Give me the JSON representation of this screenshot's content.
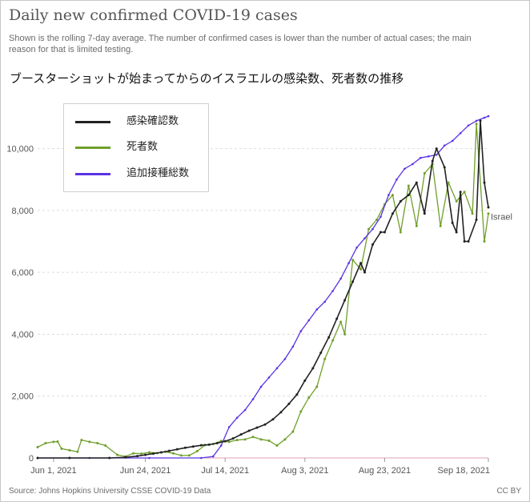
{
  "title": "Daily new confirmed COVID-19 cases",
  "subtitle": "Shown is the rolling 7-day average. The number of confirmed cases is lower than the number of actual cases; the main reason for that is limited testing.",
  "annotation": "ブースターショットが始まってからのイスラエルの感染数、死者数の推移",
  "source": "Source: Johns Hopkins University CSSE COVID-19 Data",
  "license": "CC BY",
  "colors": {
    "cases": "#222222",
    "deaths": "#6f9f2a",
    "vaccinations": "#5b33e6",
    "grid": "#dddddd",
    "baseline": "#e0a0b0"
  },
  "chart_data": {
    "type": "line",
    "x_ticks": [
      "Jun 1, 2021",
      "Jun 24, 2021",
      "Jul 14, 2021",
      "Aug 3, 2021",
      "Aug 23, 2021",
      "Sep 18, 2021"
    ],
    "y_ticks": [
      "0",
      "2,000",
      "4,000",
      "6,000",
      "8,000",
      "10,000"
    ],
    "ylim": [
      0,
      11000
    ],
    "xlim": [
      "2021-05-28",
      "2021-09-18"
    ],
    "line_label": "Israel",
    "legend": {
      "position": "top-left"
    },
    "series": [
      {
        "name": "感染確認数",
        "color": "#222222",
        "points": [
          [
            "2021-05-28",
            0
          ],
          [
            "2021-06-05",
            0
          ],
          [
            "2021-06-15",
            0
          ],
          [
            "2021-06-19",
            20
          ],
          [
            "2021-06-22",
            60
          ],
          [
            "2021-06-24",
            100
          ],
          [
            "2021-06-26",
            140
          ],
          [
            "2021-06-28",
            180
          ],
          [
            "2021-06-30",
            230
          ],
          [
            "2021-07-02",
            280
          ],
          [
            "2021-07-04",
            330
          ],
          [
            "2021-07-06",
            370
          ],
          [
            "2021-07-08",
            410
          ],
          [
            "2021-07-10",
            430
          ],
          [
            "2021-07-12",
            480
          ],
          [
            "2021-07-14",
            540
          ],
          [
            "2021-07-16",
            630
          ],
          [
            "2021-07-18",
            760
          ],
          [
            "2021-07-20",
            880
          ],
          [
            "2021-07-22",
            980
          ],
          [
            "2021-07-24",
            1080
          ],
          [
            "2021-07-26",
            1250
          ],
          [
            "2021-07-28",
            1480
          ],
          [
            "2021-07-30",
            1750
          ],
          [
            "2021-08-01",
            2050
          ],
          [
            "2021-08-03",
            2500
          ],
          [
            "2021-08-05",
            2900
          ],
          [
            "2021-08-07",
            3400
          ],
          [
            "2021-08-09",
            3900
          ],
          [
            "2021-08-11",
            4500
          ],
          [
            "2021-08-13",
            5100
          ],
          [
            "2021-08-15",
            5700
          ],
          [
            "2021-08-17",
            6300
          ],
          [
            "2021-08-18",
            6000
          ],
          [
            "2021-08-20",
            6900
          ],
          [
            "2021-08-22",
            7300
          ],
          [
            "2021-08-23",
            7300
          ],
          [
            "2021-08-25",
            7900
          ],
          [
            "2021-08-27",
            8300
          ],
          [
            "2021-08-29",
            8500
          ],
          [
            "2021-08-31",
            8900
          ],
          [
            "2021-09-02",
            7900
          ],
          [
            "2021-09-04",
            9600
          ],
          [
            "2021-09-05",
            10000
          ],
          [
            "2021-09-07",
            9400
          ],
          [
            "2021-09-09",
            7600
          ],
          [
            "2021-09-10",
            7300
          ],
          [
            "2021-09-11",
            8600
          ],
          [
            "2021-09-12",
            7000
          ],
          [
            "2021-09-13",
            7000
          ],
          [
            "2021-09-15",
            7700
          ],
          [
            "2021-09-16",
            10900
          ],
          [
            "2021-09-17",
            8900
          ],
          [
            "2021-09-18",
            8100
          ]
        ]
      },
      {
        "name": "死者数",
        "color": "#6f9f2a",
        "points": [
          [
            "2021-05-28",
            350
          ],
          [
            "2021-05-30",
            480
          ],
          [
            "2021-06-01",
            520
          ],
          [
            "2021-06-02",
            530
          ],
          [
            "2021-06-03",
            300
          ],
          [
            "2021-06-05",
            250
          ],
          [
            "2021-06-07",
            200
          ],
          [
            "2021-06-08",
            580
          ],
          [
            "2021-06-10",
            520
          ],
          [
            "2021-06-12",
            480
          ],
          [
            "2021-06-14",
            400
          ],
          [
            "2021-06-17",
            100
          ],
          [
            "2021-06-19",
            50
          ],
          [
            "2021-06-21",
            150
          ],
          [
            "2021-06-23",
            140
          ],
          [
            "2021-06-25",
            180
          ],
          [
            "2021-06-27",
            160
          ],
          [
            "2021-06-29",
            200
          ],
          [
            "2021-07-01",
            150
          ],
          [
            "2021-07-03",
            80
          ],
          [
            "2021-07-05",
            80
          ],
          [
            "2021-07-07",
            220
          ],
          [
            "2021-07-09",
            420
          ],
          [
            "2021-07-11",
            450
          ],
          [
            "2021-07-13",
            550
          ],
          [
            "2021-07-15",
            520
          ],
          [
            "2021-07-17",
            580
          ],
          [
            "2021-07-19",
            600
          ],
          [
            "2021-07-21",
            680
          ],
          [
            "2021-07-23",
            600
          ],
          [
            "2021-07-25",
            560
          ],
          [
            "2021-07-27",
            400
          ],
          [
            "2021-07-29",
            600
          ],
          [
            "2021-07-31",
            850
          ],
          [
            "2021-08-02",
            1500
          ],
          [
            "2021-08-04",
            1950
          ],
          [
            "2021-08-06",
            2300
          ],
          [
            "2021-08-08",
            3200
          ],
          [
            "2021-08-10",
            3800
          ],
          [
            "2021-08-12",
            4400
          ],
          [
            "2021-08-13",
            4000
          ],
          [
            "2021-08-15",
            6400
          ],
          [
            "2021-08-17",
            6100
          ],
          [
            "2021-08-19",
            7400
          ],
          [
            "2021-08-21",
            7700
          ],
          [
            "2021-08-23",
            8200
          ],
          [
            "2021-08-25",
            8500
          ],
          [
            "2021-08-27",
            7300
          ],
          [
            "2021-08-29",
            8800
          ],
          [
            "2021-08-31",
            7500
          ],
          [
            "2021-09-02",
            9200
          ],
          [
            "2021-09-04",
            9500
          ],
          [
            "2021-09-06",
            7500
          ],
          [
            "2021-09-08",
            8900
          ],
          [
            "2021-09-10",
            8300
          ],
          [
            "2021-09-12",
            8600
          ],
          [
            "2021-09-14",
            7900
          ],
          [
            "2021-09-15",
            10800
          ],
          [
            "2021-09-17",
            7000
          ],
          [
            "2021-09-18",
            7900
          ]
        ]
      },
      {
        "name": "追加接種総数",
        "color": "#5b33e6",
        "points": [
          [
            "2021-05-28",
            0
          ],
          [
            "2021-06-10",
            0
          ],
          [
            "2021-06-25",
            0
          ],
          [
            "2021-07-08",
            0
          ],
          [
            "2021-07-11",
            50
          ],
          [
            "2021-07-13",
            400
          ],
          [
            "2021-07-15",
            1000
          ],
          [
            "2021-07-17",
            1300
          ],
          [
            "2021-07-19",
            1550
          ],
          [
            "2021-07-21",
            1900
          ],
          [
            "2021-07-23",
            2300
          ],
          [
            "2021-07-25",
            2600
          ],
          [
            "2021-07-27",
            2900
          ],
          [
            "2021-07-29",
            3200
          ],
          [
            "2021-07-31",
            3600
          ],
          [
            "2021-08-02",
            4100
          ],
          [
            "2021-08-04",
            4450
          ],
          [
            "2021-08-06",
            4800
          ],
          [
            "2021-08-08",
            5050
          ],
          [
            "2021-08-10",
            5400
          ],
          [
            "2021-08-12",
            5800
          ],
          [
            "2021-08-14",
            6300
          ],
          [
            "2021-08-16",
            6800
          ],
          [
            "2021-08-18",
            7100
          ],
          [
            "2021-08-20",
            7400
          ],
          [
            "2021-08-22",
            7800
          ],
          [
            "2021-08-24",
            8500
          ],
          [
            "2021-08-26",
            9000
          ],
          [
            "2021-08-28",
            9350
          ],
          [
            "2021-08-30",
            9500
          ],
          [
            "2021-09-01",
            9700
          ],
          [
            "2021-09-03",
            9750
          ],
          [
            "2021-09-05",
            9800
          ],
          [
            "2021-09-07",
            10100
          ],
          [
            "2021-09-09",
            10250
          ],
          [
            "2021-09-11",
            10500
          ],
          [
            "2021-09-13",
            10750
          ],
          [
            "2021-09-15",
            10900
          ],
          [
            "2021-09-17",
            11000
          ],
          [
            "2021-09-18",
            11050
          ]
        ]
      }
    ]
  }
}
